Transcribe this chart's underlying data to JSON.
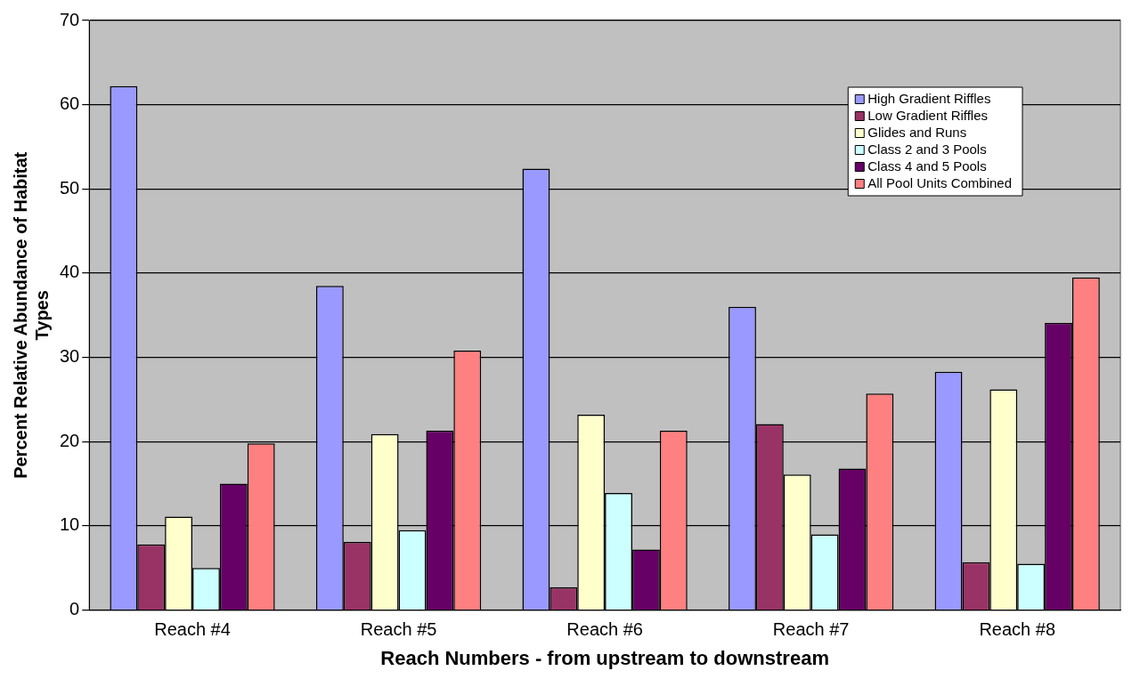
{
  "chart_data": {
    "type": "bar",
    "xlabel": "Reach Numbers - from upstream to downstream",
    "ylabel": "Percent Relative Abundance of Habitat Types",
    "categories": [
      "Reach #4",
      "Reach #5",
      "Reach #6",
      "Reach #7",
      "Reach #8"
    ],
    "series": [
      {
        "name": "High Gradient Riffles",
        "color": "#9999ff",
        "values": [
          62.2,
          38.5,
          52.4,
          36.0,
          28.3
        ]
      },
      {
        "name": "Low Gradient Riffles",
        "color": "#993366",
        "values": [
          7.8,
          8.1,
          2.7,
          22.1,
          5.7
        ]
      },
      {
        "name": "Glides and Runs",
        "color": "#ffffcc",
        "values": [
          11.1,
          20.9,
          23.2,
          16.1,
          26.2
        ]
      },
      {
        "name": "Class 2 and 3 Pools",
        "color": "#ccffff",
        "values": [
          5.0,
          9.5,
          13.9,
          9.0,
          5.5
        ]
      },
      {
        "name": "Class 4 and 5 Pools",
        "color": "#660066",
        "values": [
          15.0,
          21.3,
          7.2,
          16.8,
          34.1
        ]
      },
      {
        "name": "All Pool Units Combined",
        "color": "#ff8080",
        "values": [
          19.8,
          30.8,
          21.3,
          25.7,
          39.5
        ]
      }
    ],
    "ylim": [
      0,
      70
    ],
    "yticks": [
      0,
      10,
      20,
      30,
      40,
      50,
      60,
      70
    ],
    "grid": "y",
    "legend": "top right"
  }
}
